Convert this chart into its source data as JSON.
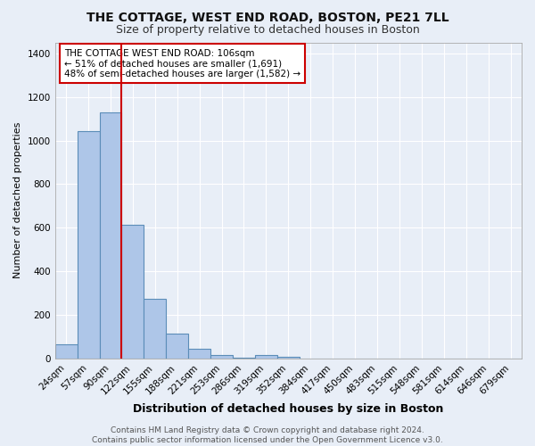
{
  "title1": "THE COTTAGE, WEST END ROAD, BOSTON, PE21 7LL",
  "title2": "Size of property relative to detached houses in Boston",
  "xlabel": "Distribution of detached houses by size in Boston",
  "ylabel": "Number of detached properties",
  "categories": [
    "24sqm",
    "57sqm",
    "90sqm",
    "122sqm",
    "155sqm",
    "188sqm",
    "221sqm",
    "253sqm",
    "286sqm",
    "319sqm",
    "352sqm",
    "384sqm",
    "417sqm",
    "450sqm",
    "483sqm",
    "515sqm",
    "548sqm",
    "581sqm",
    "614sqm",
    "646sqm",
    "679sqm"
  ],
  "values": [
    65,
    1045,
    1130,
    615,
    275,
    115,
    45,
    18,
    5,
    18,
    10,
    0,
    0,
    0,
    0,
    0,
    0,
    0,
    0,
    0,
    0
  ],
  "bar_color": "#aec6e8",
  "bar_edge_color": "#5b8db8",
  "background_color": "#e8eef7",
  "grid_color": "#ffffff",
  "vline_x": 2.5,
  "vline_color": "#cc0000",
  "annotation_text": "THE COTTAGE WEST END ROAD: 106sqm\n← 51% of detached houses are smaller (1,691)\n48% of semi-detached houses are larger (1,582) →",
  "annotation_box_color": "#ffffff",
  "annotation_box_edge": "#cc0000",
  "footer": "Contains HM Land Registry data © Crown copyright and database right 2024.\nContains public sector information licensed under the Open Government Licence v3.0.",
  "ylim": [
    0,
    1450
  ],
  "yticks": [
    0,
    200,
    400,
    600,
    800,
    1000,
    1200,
    1400
  ],
  "title1_fontsize": 10,
  "title2_fontsize": 9,
  "xlabel_fontsize": 9,
  "ylabel_fontsize": 8,
  "tick_fontsize": 7.5,
  "footer_fontsize": 6.5,
  "annot_fontsize": 7.5
}
